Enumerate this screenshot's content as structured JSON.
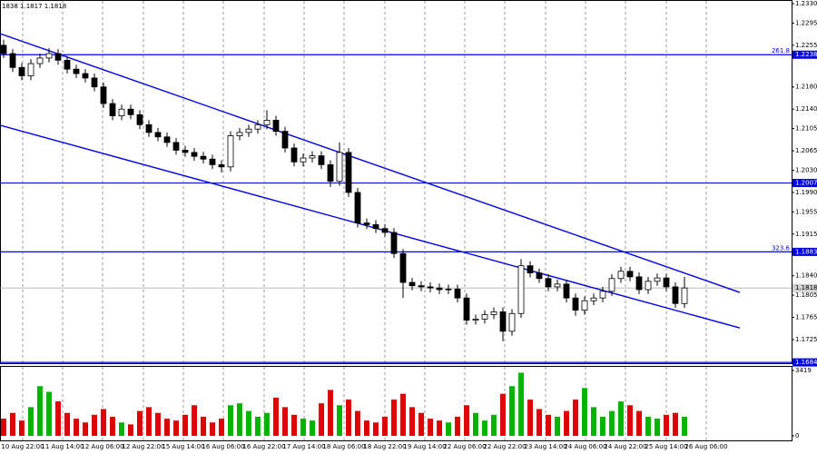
{
  "chart_data": {
    "type": "candlestick",
    "header": "1838 1.1817 1.1818",
    "xlim": [
      -0.4,
      86.8
    ],
    "xticks": [
      {
        "value": 2.1,
        "label": "10 Aug 22:00"
      },
      {
        "value": 6.5,
        "label": "11 Aug 14:00"
      },
      {
        "value": 10.9,
        "label": "12 Aug 06:00"
      },
      {
        "value": 15.4,
        "label": "12 Aug 22:00"
      },
      {
        "value": 19.8,
        "label": "15 Aug 14:00"
      },
      {
        "value": 24.2,
        "label": "16 Aug 06:00"
      },
      {
        "value": 28.7,
        "label": "16 Aug 22:00"
      },
      {
        "value": 33.1,
        "label": "17 Aug 14:00"
      },
      {
        "value": 37.5,
        "label": "18 Aug 06:00"
      },
      {
        "value": 42,
        "label": "18 Aug 22:00"
      },
      {
        "value": 46.4,
        "label": "19 Aug 14:00"
      },
      {
        "value": 50.8,
        "label": "22 Aug 06:00"
      },
      {
        "value": 55.2,
        "label": "22 Aug 22:00"
      },
      {
        "value": 59.7,
        "label": "23 Aug 14:00"
      },
      {
        "value": 64.1,
        "label": "24 Aug 06:00"
      },
      {
        "value": 68.5,
        "label": "24 Aug 22:00"
      },
      {
        "value": 73,
        "label": "25 Aug 14:00"
      },
      {
        "value": 77.4,
        "label": "26 Aug 06:00"
      }
    ],
    "ylim": [
      1.16809,
      1.23365
    ],
    "yticks": [
      {
        "value": 1.233,
        "label": "1.2330"
      },
      {
        "value": 1.2295,
        "label": "1.2295"
      },
      {
        "value": 1.2255,
        "label": "1.2255"
      },
      {
        "value": 1.218,
        "label": "1.2180"
      },
      {
        "value": 1.214,
        "label": "1.2140"
      },
      {
        "value": 1.2105,
        "label": "1.2105"
      },
      {
        "value": 1.2065,
        "label": "1.2065"
      },
      {
        "value": 1.203,
        "label": "1.2030"
      },
      {
        "value": 1.199,
        "label": "1.1990"
      },
      {
        "value": 1.1955,
        "label": "1.1955"
      },
      {
        "value": 1.1915,
        "label": "1.1915"
      },
      {
        "value": 1.184,
        "label": "1.1840"
      },
      {
        "value": 1.1805,
        "label": "1.1805"
      },
      {
        "value": 1.1765,
        "label": "1.1765"
      },
      {
        "value": 1.1725,
        "label": "1.1725"
      }
    ],
    "open": [
      1.2255,
      1.224,
      1.2215,
      1.22,
      1.2222,
      1.2232,
      1.224,
      1.2228,
      1.2212,
      1.2204,
      1.2196,
      1.218,
      1.215,
      1.2128,
      1.214,
      1.213,
      1.2112,
      1.2098,
      1.209,
      1.208,
      1.2066,
      1.2062,
      1.2055,
      1.205,
      1.204,
      1.2036,
      1.2092,
      1.2098,
      1.2104,
      1.2112,
      1.212,
      1.21,
      1.207,
      1.2045,
      1.2052,
      1.2056,
      1.204,
      1.201,
      1.2062,
      1.199,
      1.1935,
      1.1932,
      1.1925,
      1.1918,
      1.188,
      1.1828,
      1.1822,
      1.182,
      1.1818,
      1.1815,
      1.1816,
      1.18,
      1.176,
      1.1762,
      1.177,
      1.1775,
      1.174,
      1.1772,
      1.1858,
      1.1845,
      1.1835,
      1.182,
      1.1825,
      1.18,
      1.1778,
      1.1795,
      1.18,
      1.1812,
      1.1835,
      1.1848,
      1.1838,
      1.1815,
      1.183,
      1.1836,
      1.182,
      1.179
    ],
    "high": [
      1.2265,
      1.2248,
      1.2223,
      1.223,
      1.224,
      1.225,
      1.2248,
      1.2236,
      1.222,
      1.2212,
      1.2204,
      1.2188,
      1.2158,
      1.2148,
      1.2148,
      1.2138,
      1.212,
      1.2106,
      1.2098,
      1.2088,
      1.2074,
      1.207,
      1.2063,
      1.2058,
      1.2048,
      1.21,
      1.2106,
      1.2112,
      1.212,
      1.2138,
      1.2128,
      1.2108,
      1.2078,
      1.206,
      1.2064,
      1.2064,
      1.2048,
      1.208,
      1.207,
      1.1998,
      1.1943,
      1.194,
      1.1933,
      1.1926,
      1.1888,
      1.1836,
      1.183,
      1.1828,
      1.1826,
      1.1824,
      1.1824,
      1.1808,
      1.177,
      1.1778,
      1.1783,
      1.1783,
      1.178,
      1.187,
      1.1866,
      1.1853,
      1.1843,
      1.1833,
      1.1833,
      1.1808,
      1.1803,
      1.1808,
      1.182,
      1.1843,
      1.1856,
      1.1856,
      1.1846,
      1.1838,
      1.1844,
      1.1844,
      1.1828,
      1.1838
    ],
    "low": [
      1.2232,
      1.2207,
      1.2192,
      1.2192,
      1.2214,
      1.2224,
      1.222,
      1.2204,
      1.2196,
      1.2188,
      1.2172,
      1.2142,
      1.212,
      1.212,
      1.2122,
      1.2104,
      1.209,
      1.2082,
      1.2072,
      1.2058,
      1.2054,
      1.2047,
      1.2042,
      1.2032,
      1.2026,
      1.2028,
      1.2084,
      1.209,
      1.2096,
      1.2104,
      1.2092,
      1.2062,
      1.2037,
      1.2037,
      1.2044,
      1.2032,
      1.2,
      1.2002,
      1.1982,
      1.1927,
      1.1924,
      1.1917,
      1.191,
      1.1872,
      1.18,
      1.1814,
      1.1812,
      1.181,
      1.1807,
      1.1807,
      1.1792,
      1.1752,
      1.1752,
      1.1754,
      1.1762,
      1.1722,
      1.1732,
      1.1764,
      1.1837,
      1.1827,
      1.1812,
      1.1812,
      1.1792,
      1.1768,
      1.177,
      1.1787,
      1.1792,
      1.1804,
      1.1827,
      1.183,
      1.1807,
      1.1807,
      1.1822,
      1.1812,
      1.1782,
      1.1782
    ],
    "close": [
      1.224,
      1.2215,
      1.22,
      1.2222,
      1.2232,
      1.224,
      1.2228,
      1.2212,
      1.2204,
      1.2196,
      1.218,
      1.215,
      1.2128,
      1.214,
      1.213,
      1.2112,
      1.2098,
      1.209,
      1.208,
      1.2066,
      1.2062,
      1.2055,
      1.205,
      1.204,
      1.2036,
      1.2092,
      1.2098,
      1.2104,
      1.2112,
      1.212,
      1.21,
      1.207,
      1.2045,
      1.2052,
      1.2056,
      1.204,
      1.201,
      1.2062,
      1.199,
      1.1935,
      1.1932,
      1.1925,
      1.1918,
      1.188,
      1.1828,
      1.1822,
      1.182,
      1.1818,
      1.1815,
      1.1816,
      1.18,
      1.176,
      1.1762,
      1.177,
      1.1775,
      1.174,
      1.1772,
      1.1858,
      1.1845,
      1.1835,
      1.182,
      1.1825,
      1.18,
      1.1778,
      1.1795,
      1.18,
      1.1812,
      1.1835,
      1.1848,
      1.1838,
      1.1815,
      1.183,
      1.1836,
      1.182,
      1.179,
      1.1818
    ],
    "volume": [
      900,
      1200,
      800,
      1500,
      2600,
      2300,
      1800,
      1200,
      900,
      700,
      1100,
      1400,
      1000,
      700,
      600,
      1300,
      1500,
      1200,
      900,
      800,
      1100,
      1600,
      1000,
      700,
      900,
      1600,
      1700,
      1300,
      1000,
      1200,
      2000,
      1500,
      1100,
      900,
      800,
      1700,
      2400,
      1600,
      1900,
      1300,
      800,
      700,
      1000,
      1900,
      2200,
      1500,
      1200,
      900,
      800,
      700,
      1000,
      1600,
      1200,
      800,
      1100,
      2200,
      2600,
      3300,
      1900,
      1400,
      1100,
      1000,
      1300,
      1900,
      2500,
      1500,
      1000,
      1300,
      1800,
      1600,
      1300,
      1000,
      900,
      1100,
      1200,
      1000
    ],
    "volume_ylim": [
      0,
      3419
    ],
    "volume_yticks": [
      3419,
      0
    ],
    "up_color": "#ffffff",
    "down_color": "#000000",
    "volume_up_color": "#00b400",
    "volume_down_color": "#e00000",
    "line_color": "#0000e0",
    "trendlines": [
      {
        "x": [
          -0.4,
          81.1
        ],
        "y": [
          1.2276,
          1.181
        ]
      },
      {
        "x": [
          -0.4,
          81.1
        ],
        "y": [
          1.2111,
          1.1746
        ]
      }
    ],
    "levels": [
      {
        "value": 1.2238,
        "fib": "261.8"
      },
      {
        "value": 1.2007
      },
      {
        "value": 1.1883,
        "fib": "323.6"
      },
      {
        "value": 1.1684
      }
    ],
    "current_price": 1.1818
  }
}
